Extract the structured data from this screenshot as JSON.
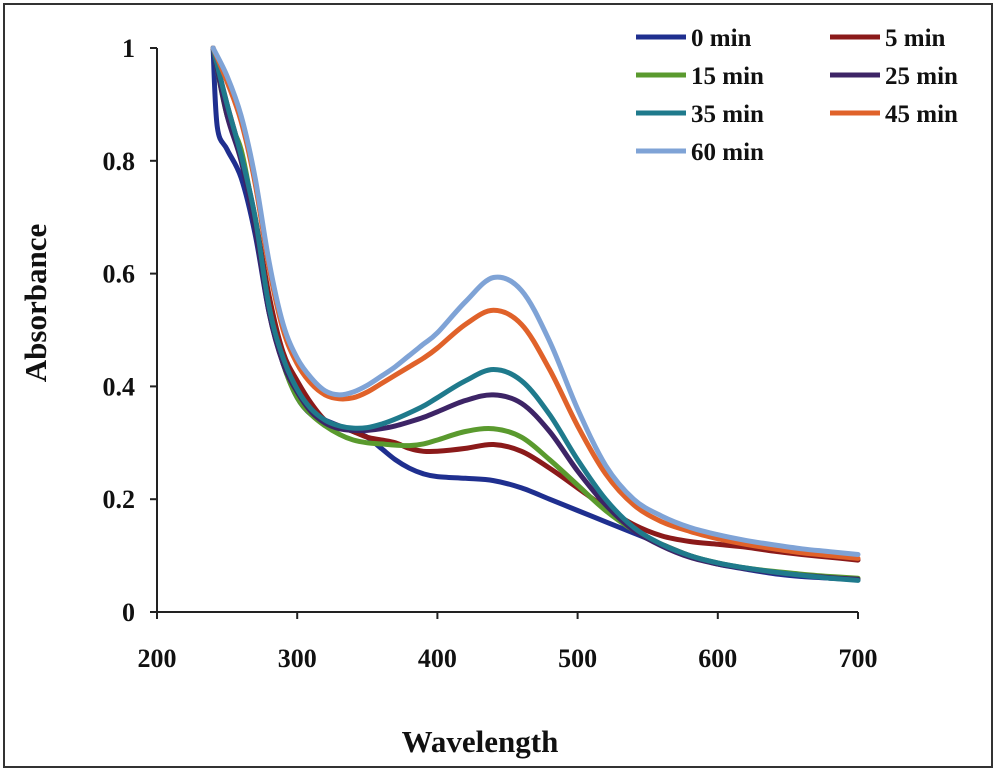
{
  "chart_data": {
    "type": "line",
    "title": "",
    "xlabel": "Wavelength",
    "ylabel": "Absorbance",
    "xlim": [
      200,
      700
    ],
    "ylim": [
      0,
      1
    ],
    "xticks": [
      "200",
      "300",
      "400",
      "500",
      "600",
      "700"
    ],
    "yticks": [
      "0",
      "0.2",
      "0.4",
      "0.6",
      "0.8",
      "1"
    ],
    "grid": false,
    "legend_position": "top-right",
    "series": [
      {
        "name": "0 min",
        "color": "#1f2f8f",
        "x": [
          240,
          243,
          250,
          260,
          270,
          280,
          290,
          300,
          310,
          320,
          330,
          340,
          350,
          360,
          370,
          380,
          390,
          400,
          420,
          440,
          460,
          480,
          500,
          520,
          540,
          560,
          580,
          600,
          620,
          640,
          660,
          680,
          700
        ],
        "y": [
          1.0,
          0.86,
          0.82,
          0.77,
          0.67,
          0.53,
          0.44,
          0.38,
          0.35,
          0.34,
          0.33,
          0.32,
          0.31,
          0.29,
          0.27,
          0.255,
          0.245,
          0.24,
          0.237,
          0.233,
          0.22,
          0.2,
          0.18,
          0.16,
          0.14,
          0.12,
          0.1,
          0.085,
          0.076,
          0.068,
          0.063,
          0.06,
          0.057
        ]
      },
      {
        "name": "5 min",
        "color": "#8b1a1a",
        "x": [
          240,
          250,
          260,
          270,
          280,
          290,
          300,
          310,
          320,
          330,
          340,
          350,
          360,
          370,
          380,
          390,
          400,
          420,
          440,
          460,
          480,
          500,
          520,
          540,
          560,
          580,
          600,
          620,
          640,
          660,
          680,
          700
        ],
        "y": [
          1.0,
          0.9,
          0.81,
          0.7,
          0.56,
          0.46,
          0.41,
          0.37,
          0.34,
          0.33,
          0.32,
          0.31,
          0.305,
          0.3,
          0.29,
          0.285,
          0.285,
          0.29,
          0.297,
          0.285,
          0.255,
          0.22,
          0.185,
          0.155,
          0.135,
          0.125,
          0.12,
          0.115,
          0.108,
          0.102,
          0.097,
          0.092
        ]
      },
      {
        "name": "15 min",
        "color": "#5a9a2e",
        "x": [
          240,
          250,
          260,
          270,
          280,
          290,
          300,
          310,
          320,
          330,
          340,
          350,
          360,
          370,
          380,
          390,
          400,
          420,
          440,
          460,
          480,
          500,
          520,
          540,
          560,
          580,
          600,
          620,
          640,
          660,
          680,
          700
        ],
        "y": [
          1.0,
          0.88,
          0.82,
          0.69,
          0.54,
          0.44,
          0.38,
          0.35,
          0.33,
          0.315,
          0.305,
          0.3,
          0.298,
          0.296,
          0.295,
          0.298,
          0.305,
          0.32,
          0.325,
          0.31,
          0.27,
          0.225,
          0.18,
          0.145,
          0.12,
          0.1,
          0.087,
          0.078,
          0.072,
          0.067,
          0.063,
          0.06
        ]
      },
      {
        "name": "25 min",
        "color": "#3d2466",
        "x": [
          240,
          250,
          260,
          270,
          280,
          290,
          300,
          310,
          320,
          330,
          340,
          350,
          360,
          370,
          380,
          390,
          400,
          420,
          440,
          460,
          480,
          500,
          520,
          540,
          560,
          580,
          600,
          620,
          640,
          660,
          680,
          700
        ],
        "y": [
          1.0,
          0.88,
          0.8,
          0.68,
          0.53,
          0.44,
          0.39,
          0.355,
          0.335,
          0.325,
          0.322,
          0.322,
          0.325,
          0.33,
          0.337,
          0.345,
          0.355,
          0.375,
          0.385,
          0.37,
          0.32,
          0.25,
          0.19,
          0.145,
          0.117,
          0.097,
          0.085,
          0.077,
          0.07,
          0.065,
          0.061,
          0.058
        ]
      },
      {
        "name": "35 min",
        "color": "#1f7a8c",
        "x": [
          240,
          250,
          260,
          270,
          280,
          290,
          300,
          310,
          320,
          330,
          340,
          350,
          360,
          370,
          380,
          390,
          400,
          420,
          440,
          460,
          480,
          500,
          520,
          540,
          560,
          580,
          600,
          620,
          640,
          660,
          680,
          700
        ],
        "y": [
          1.0,
          0.9,
          0.81,
          0.7,
          0.54,
          0.45,
          0.395,
          0.36,
          0.34,
          0.33,
          0.326,
          0.327,
          0.333,
          0.342,
          0.353,
          0.365,
          0.38,
          0.41,
          0.43,
          0.41,
          0.35,
          0.27,
          0.2,
          0.15,
          0.12,
          0.1,
          0.087,
          0.078,
          0.071,
          0.065,
          0.06,
          0.056
        ]
      },
      {
        "name": "45 min",
        "color": "#e0622a",
        "x": [
          240,
          250,
          260,
          270,
          280,
          290,
          300,
          310,
          320,
          330,
          340,
          350,
          360,
          370,
          380,
          390,
          400,
          420,
          440,
          460,
          480,
          500,
          520,
          540,
          560,
          580,
          600,
          620,
          640,
          660,
          680,
          700
        ],
        "y": [
          1.0,
          0.94,
          0.87,
          0.76,
          0.61,
          0.5,
          0.44,
          0.405,
          0.385,
          0.378,
          0.38,
          0.39,
          0.405,
          0.42,
          0.435,
          0.45,
          0.468,
          0.51,
          0.535,
          0.51,
          0.43,
          0.33,
          0.245,
          0.19,
          0.16,
          0.143,
          0.13,
          0.12,
          0.112,
          0.105,
          0.1,
          0.095
        ]
      },
      {
        "name": "60 min",
        "color": "#7fa3d6",
        "x": [
          240,
          250,
          260,
          270,
          280,
          290,
          300,
          310,
          320,
          330,
          340,
          350,
          360,
          370,
          380,
          390,
          400,
          420,
          440,
          460,
          480,
          500,
          520,
          540,
          560,
          580,
          600,
          620,
          640,
          660,
          680,
          700
        ],
        "y": [
          1.0,
          0.95,
          0.88,
          0.77,
          0.62,
          0.51,
          0.45,
          0.415,
          0.392,
          0.385,
          0.39,
          0.402,
          0.418,
          0.435,
          0.455,
          0.475,
          0.495,
          0.55,
          0.593,
          0.57,
          0.48,
          0.36,
          0.26,
          0.2,
          0.17,
          0.15,
          0.137,
          0.127,
          0.119,
          0.112,
          0.107,
          0.102
        ]
      }
    ]
  }
}
